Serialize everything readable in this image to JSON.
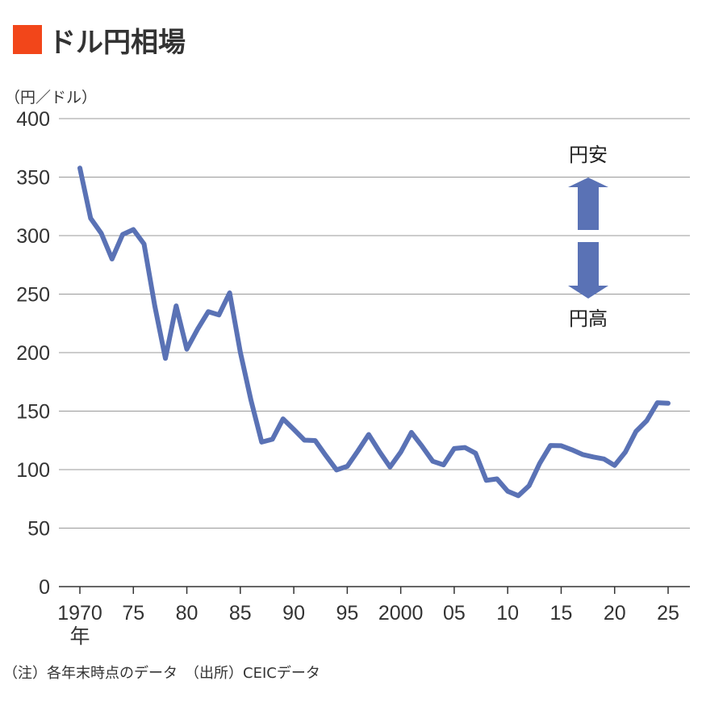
{
  "chart_data": {
    "type": "line",
    "title": "ドル円相場",
    "ylabel": "（円／ドル）",
    "ylim": [
      0,
      400
    ],
    "yticks": [
      "0",
      "50",
      "100",
      "150",
      "200",
      "250",
      "300",
      "350",
      "400"
    ],
    "yticks_values": [
      0,
      50,
      100,
      150,
      200,
      250,
      300,
      350,
      400
    ],
    "xlim": [
      1970,
      2025
    ],
    "xticks": [
      {
        "year": 1970,
        "label": "1970"
      },
      {
        "year": 1975,
        "label": "75"
      },
      {
        "year": 1980,
        "label": "80"
      },
      {
        "year": 1985,
        "label": "85"
      },
      {
        "year": 1990,
        "label": "90"
      },
      {
        "year": 1995,
        "label": "95"
      },
      {
        "year": 2000,
        "label": "2000"
      },
      {
        "year": 2005,
        "label": "05"
      },
      {
        "year": 2010,
        "label": "10"
      },
      {
        "year": 2015,
        "label": "15"
      },
      {
        "year": 2020,
        "label": "20"
      },
      {
        "year": 2025,
        "label": "25"
      }
    ],
    "xunit": "年",
    "grid": true,
    "series": [
      {
        "name": "ドル円相場",
        "color": "#5a72b5",
        "x": [
          1970,
          1971,
          1972,
          1973,
          1974,
          1975,
          1976,
          1977,
          1978,
          1979,
          1980,
          1981,
          1982,
          1983,
          1984,
          1985,
          1986,
          1987,
          1988,
          1989,
          1990,
          1991,
          1992,
          1993,
          1994,
          1995,
          1996,
          1997,
          1998,
          1999,
          2000,
          2001,
          2002,
          2003,
          2004,
          2005,
          2006,
          2007,
          2008,
          2009,
          2010,
          2011,
          2012,
          2013,
          2014,
          2015,
          2016,
          2017,
          2018,
          2019,
          2020,
          2021,
          2022,
          2023,
          2024,
          2025
        ],
        "values": [
          357.7,
          314.8,
          302,
          280,
          301,
          305.2,
          292.8,
          240,
          195.1,
          239.9,
          203,
          219.9,
          235,
          232.2,
          251.1,
          200.5,
          159.1,
          123.5,
          125.9,
          143.4,
          134.4,
          125.2,
          124.8,
          111.9,
          99.7,
          102.8,
          116,
          130,
          115.6,
          102.2,
          114.9,
          131.8,
          119.9,
          107.1,
          104.1,
          118,
          118.9,
          114,
          90.8,
          92.1,
          81.5,
          77.7,
          86.3,
          105.4,
          120.6,
          120.4,
          117,
          112.9,
          110.8,
          109.1,
          103.6,
          115,
          132.7,
          141.8,
          157.2,
          156.7
        ]
      }
    ],
    "annotations": {
      "up": "円安",
      "down": "円高"
    },
    "accent_color": "#f2461a",
    "footnote": "（注）各年末時点のデータ　（出所）CEICデータ"
  }
}
